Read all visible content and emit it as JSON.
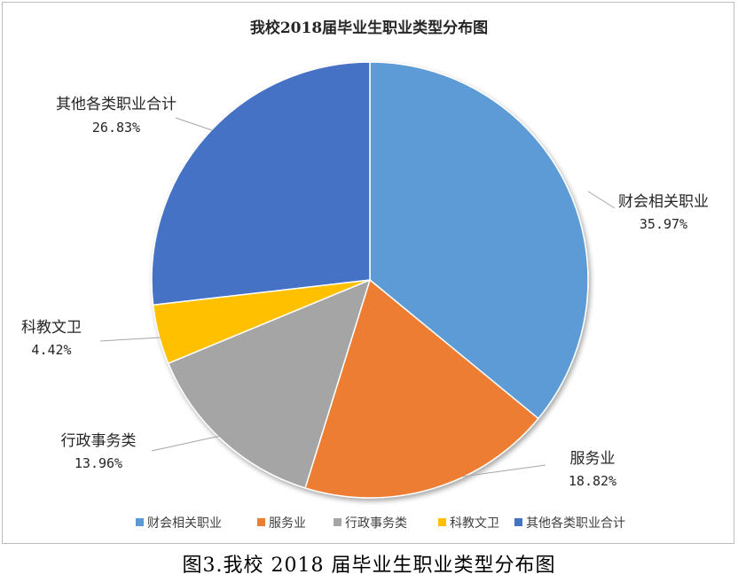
{
  "chart_data": {
    "type": "pie",
    "title": "我校2018届毕业生职业类型分布图",
    "categories": [
      "财会相关职业",
      "服务业",
      "行政事务类",
      "科教文卫",
      "其他各类职业合计"
    ],
    "values": [
      35.97,
      18.82,
      13.96,
      4.42,
      26.83
    ],
    "value_labels": [
      "35.97%",
      "18.82%",
      "13.96%",
      "4.42%",
      "26.83%"
    ],
    "colors": [
      "#5b9bd5",
      "#ed7d31",
      "#a5a5a5",
      "#ffc000",
      "#4472c4"
    ],
    "legend_position": "bottom",
    "start_angle": "12 o'clock, clockwise"
  },
  "caption": "图3.我校 2018 届毕业生职业类型分布图"
}
